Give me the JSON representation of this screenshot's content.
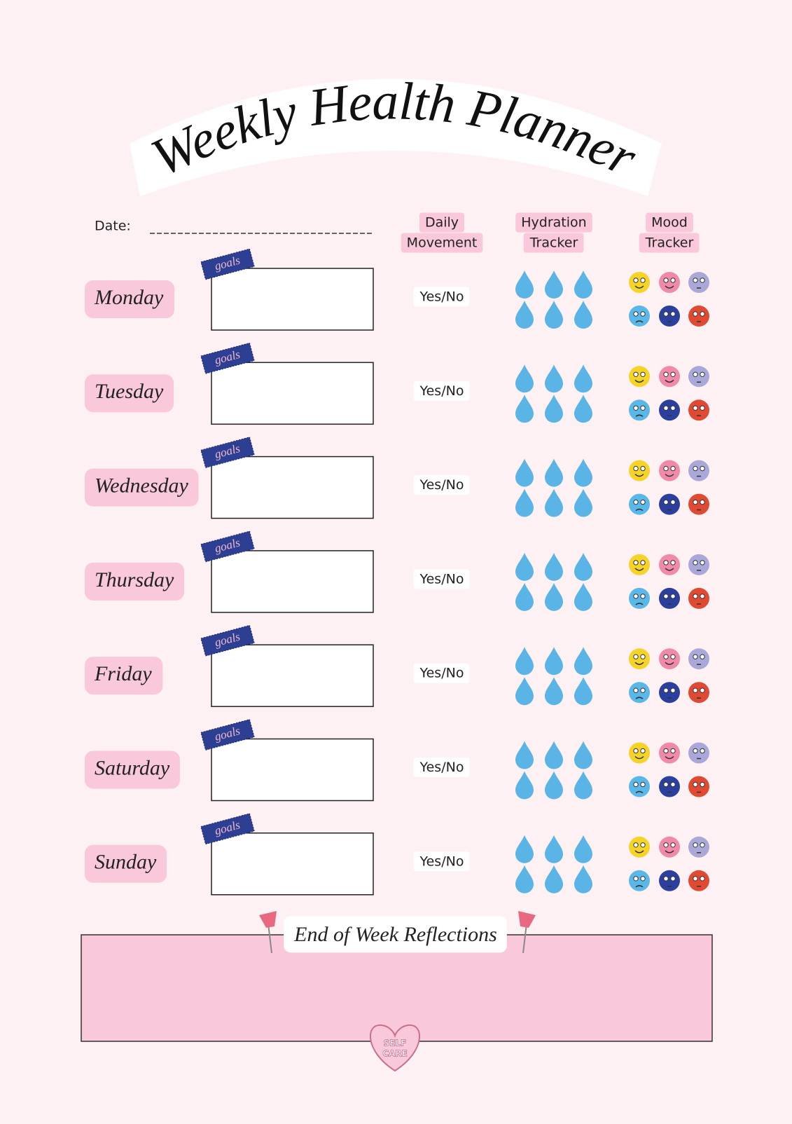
{
  "header": {
    "title": "Weekly Health Planner",
    "date_label": "Date:"
  },
  "columns": [
    {
      "lines": [
        "Daily",
        "Movement"
      ]
    },
    {
      "lines": [
        "Hydration",
        "Tracker"
      ]
    },
    {
      "lines": [
        "Mood",
        "Tracker"
      ]
    }
  ],
  "days": [
    {
      "name": "Monday",
      "tag": "goals",
      "movement": "Yes/No"
    },
    {
      "name": "Tuesday",
      "tag": "goals",
      "movement": "Yes/No"
    },
    {
      "name": "Wednesday",
      "tag": "goals",
      "movement": "Yes/No"
    },
    {
      "name": "Thursday",
      "tag": "goals",
      "movement": "Yes/No"
    },
    {
      "name": "Friday",
      "tag": "goals",
      "movement": "Yes/No"
    },
    {
      "name": "Saturday",
      "tag": "goals",
      "movement": "Yes/No"
    },
    {
      "name": "Sunday",
      "tag": "goals",
      "movement": "Yes/No"
    }
  ],
  "reflections": {
    "title": "End of Week Reflections"
  },
  "badge": {
    "lines": [
      "SELF",
      "CARE"
    ]
  }
}
